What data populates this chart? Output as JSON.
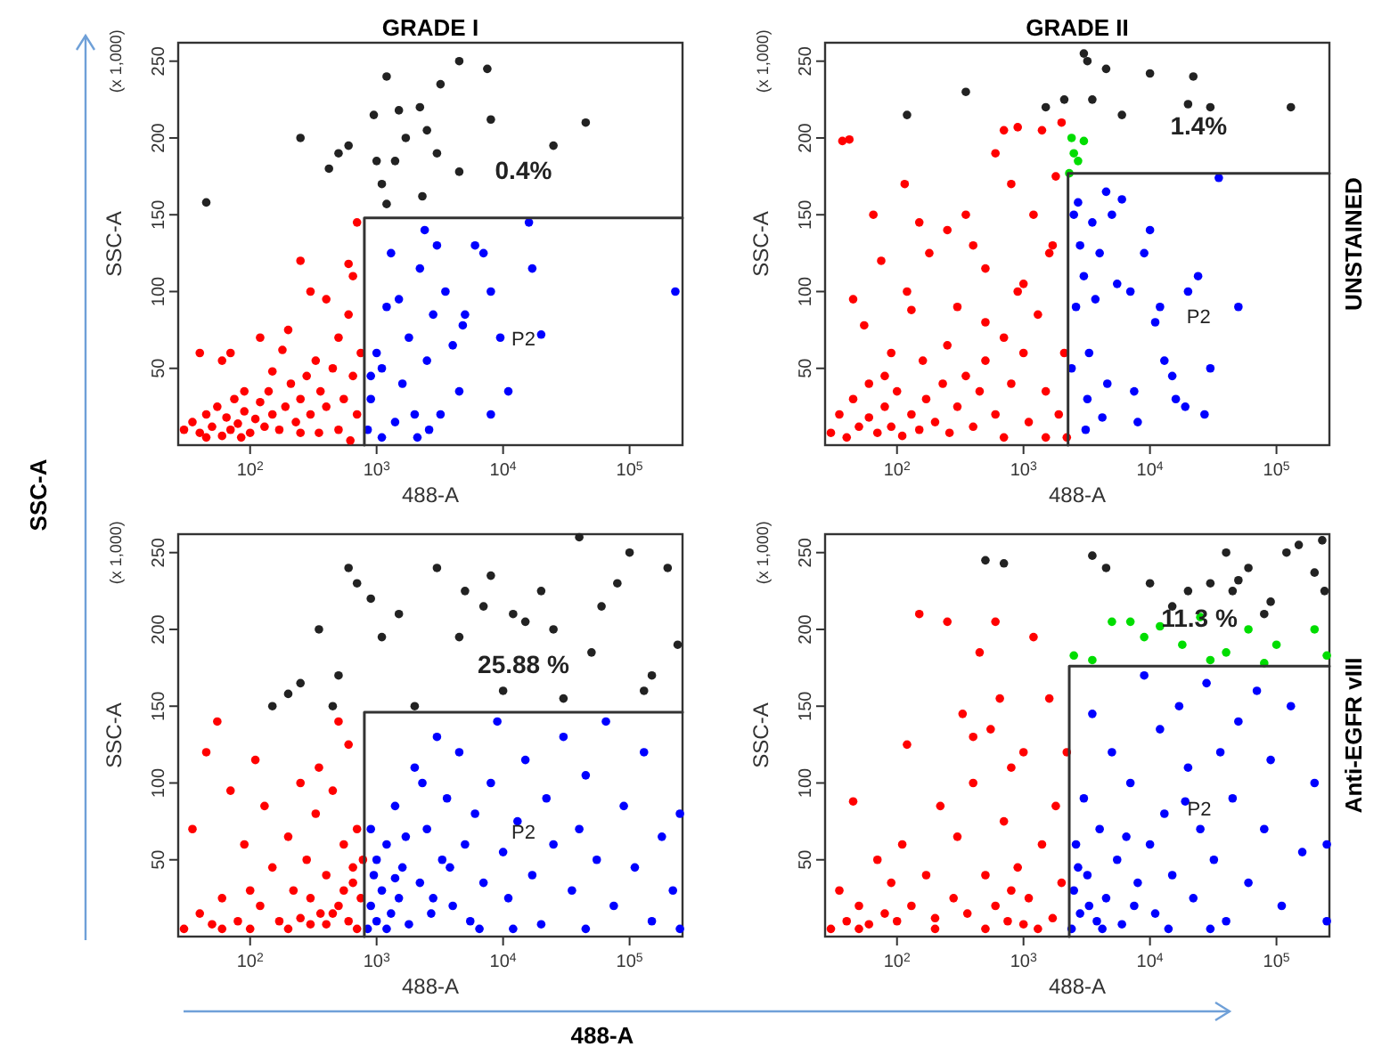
{
  "chart_data": [
    {
      "type": "scatter",
      "title": "GRADE I",
      "xlabel": "488-A",
      "ylabel": "SSC-A",
      "log": "x",
      "marker": "circle",
      "xlim": [
        27,
        262144
      ],
      "ylim": [
        0,
        262
      ],
      "xticks": [
        {
          "value": 100,
          "label": "10$^{2}$"
        },
        {
          "value": 1000,
          "label": "10$^{3}$"
        },
        {
          "value": 10000,
          "label": "10$^{4}$"
        },
        {
          "value": 100000,
          "label": "10$^{5}$"
        }
      ],
      "yticks": [
        50,
        100,
        150,
        200,
        250
      ],
      "annotations": [
        "(x 1,000)",
        "0.4%",
        "P2"
      ],
      "series": [
        {
          "type": "scatter",
          "color": "#ff0000",
          "x": [
            30,
            35,
            40,
            45,
            50,
            55,
            60,
            65,
            70,
            75,
            80,
            90,
            100,
            110,
            120,
            130,
            140,
            150,
            170,
            190,
            210,
            230,
            250,
            280,
            300,
            330,
            360,
            400,
            450,
            500,
            550,
            600,
            650,
            700,
            750,
            200,
            300,
            250,
            400,
            600,
            700,
            120,
            70,
            40,
            60,
            90,
            150,
            180,
            500,
            350,
            45,
            85,
            250,
            620,
            650
          ],
          "values": [
            10,
            15,
            8,
            20,
            12,
            25,
            6,
            18,
            10,
            30,
            14,
            22,
            8,
            17,
            28,
            12,
            35,
            20,
            10,
            25,
            40,
            15,
            30,
            45,
            20,
            55,
            35,
            25,
            50,
            70,
            30,
            85,
            45,
            20,
            60,
            75,
            100,
            120,
            95,
            118,
            145,
            70,
            60,
            60,
            55,
            35,
            48,
            62,
            10,
            8,
            5,
            5,
            8,
            3,
            110
          ]
        },
        {
          "type": "scatter",
          "color": "#0000ff",
          "x": [
            850,
            900,
            1000,
            1100,
            1200,
            1300,
            1500,
            1600,
            1800,
            2000,
            2200,
            2400,
            2500,
            2600,
            2800,
            3000,
            3500,
            4000,
            4500,
            5000,
            6000,
            7000,
            8000,
            8000,
            9500,
            11000,
            17000,
            20000,
            230000,
            16000,
            1100,
            1400,
            2100,
            900,
            3200,
            4800
          ],
          "values": [
            10,
            30,
            60,
            50,
            90,
            125,
            95,
            40,
            70,
            20,
            115,
            140,
            55,
            10,
            85,
            130,
            100,
            65,
            35,
            85,
            130,
            125,
            100,
            20,
            70,
            35,
            115,
            72,
            100,
            145,
            5,
            15,
            5,
            45,
            20,
            78
          ]
        },
        {
          "type": "scatter",
          "color": "#222222",
          "x": [
            45,
            250,
            420,
            500,
            600,
            950,
            1000,
            1100,
            1200,
            1400,
            1500,
            1700,
            2200,
            2500,
            3200,
            4500,
            4500,
            7500,
            8000,
            25000,
            45000,
            2300,
            1200,
            3000
          ],
          "values": [
            158,
            200,
            180,
            190,
            195,
            215,
            185,
            170,
            240,
            185,
            218,
            200,
            220,
            205,
            235,
            250,
            178,
            245,
            212,
            195,
            210,
            162,
            157,
            190
          ]
        },
        {
          "type": "line",
          "marker": "none",
          "color": "#333333",
          "x": [
            800,
            800,
            262144
          ],
          "values": [
            0,
            148,
            148
          ]
        }
      ]
    },
    {
      "type": "scatter",
      "title": "GRADE II",
      "xlabel": "488-A",
      "ylabel": "SSC-A",
      "y2label": "UNSTAINED",
      "log": "x",
      "marker": "circle",
      "xlim": [
        27,
        262144
      ],
      "ylim": [
        0,
        262
      ],
      "xticks": [
        {
          "value": 100,
          "label": "10$^{2}$"
        },
        {
          "value": 1000,
          "label": "10$^{3}$"
        },
        {
          "value": 10000,
          "label": "10$^{4}$"
        },
        {
          "value": 100000,
          "label": "10$^{5}$"
        }
      ],
      "yticks": [
        50,
        100,
        150,
        200,
        250
      ],
      "annotations": [
        "(x 1,000)",
        "1.4%",
        "P2"
      ],
      "series": [
        {
          "type": "scatter",
          "color": "#ff0000",
          "x": [
            30,
            35,
            40,
            45,
            50,
            60,
            70,
            80,
            90,
            100,
            110,
            130,
            150,
            170,
            200,
            230,
            260,
            300,
            350,
            400,
            450,
            500,
            600,
            700,
            800,
            900,
            1000,
            1100,
            1300,
            1500,
            1700,
            1900,
            2100,
            37,
            42,
            45,
            55,
            65,
            75,
            90,
            115,
            120,
            150,
            180,
            250,
            300,
            350,
            400,
            500,
            600,
            700,
            800,
            900,
            1000,
            1200,
            1400,
            1600,
            2000,
            1800,
            500,
            250,
            160,
            130,
            80,
            60,
            2200,
            1500,
            700
          ],
          "values": [
            8,
            20,
            5,
            30,
            12,
            18,
            8,
            25,
            12,
            35,
            6,
            20,
            10,
            30,
            15,
            40,
            8,
            25,
            45,
            12,
            35,
            55,
            20,
            70,
            40,
            100,
            60,
            15,
            85,
            35,
            130,
            20,
            60,
            198,
            199,
            95,
            78,
            150,
            120,
            60,
            170,
            100,
            145,
            125,
            140,
            90,
            150,
            130,
            115,
            190,
            205,
            170,
            207,
            105,
            150,
            205,
            125,
            210,
            175,
            80,
            65,
            55,
            88,
            45,
            40,
            5,
            5,
            5
          ]
        },
        {
          "type": "scatter",
          "color": "#00dd00",
          "x": [
            2400,
            2500,
            2700,
            3000,
            2300
          ],
          "values": [
            200,
            190,
            185,
            198,
            177
          ]
        },
        {
          "type": "scatter",
          "color": "#0000ff",
          "x": [
            2400,
            2500,
            2700,
            2800,
            3000,
            3200,
            3300,
            3500,
            3700,
            4000,
            4200,
            4500,
            5000,
            5500,
            6000,
            7000,
            7500,
            8000,
            9000,
            10000,
            11000,
            12000,
            13000,
            15000,
            16000,
            20000,
            24000,
            30000,
            27000,
            50000,
            2600,
            3100,
            4600,
            19000,
            35000
          ],
          "values": [
            50,
            150,
            158,
            130,
            110,
            30,
            60,
            145,
            95,
            125,
            18,
            165,
            150,
            105,
            160,
            100,
            35,
            15,
            125,
            140,
            80,
            90,
            55,
            45,
            30,
            100,
            110,
            50,
            20,
            90,
            90,
            10,
            40,
            25,
            174
          ]
        },
        {
          "type": "scatter",
          "color": "#222222",
          "x": [
            120,
            350,
            1500,
            2100,
            3000,
            3200,
            3500,
            4500,
            6000,
            10000,
            20000,
            22000,
            30000,
            130000
          ],
          "values": [
            215,
            230,
            220,
            225,
            255,
            250,
            225,
            245,
            215,
            242,
            222,
            240,
            220,
            220
          ]
        },
        {
          "type": "line",
          "marker": "none",
          "color": "#333333",
          "x": [
            2250,
            2250,
            262144
          ],
          "values": [
            0,
            177,
            177
          ]
        }
      ]
    },
    {
      "type": "scatter",
      "xlabel": "488-A",
      "ylabel": "SSC-A",
      "log": "x",
      "marker": "circle",
      "xlim": [
        27,
        262144
      ],
      "ylim": [
        0,
        262
      ],
      "xticks": [
        {
          "value": 100,
          "label": "10$^{2}$"
        },
        {
          "value": 1000,
          "label": "10$^{3}$"
        },
        {
          "value": 10000,
          "label": "10$^{4}$"
        },
        {
          "value": 100000,
          "label": "10$^{5}$"
        }
      ],
      "yticks": [
        50,
        100,
        150,
        200,
        250
      ],
      "annotations": [
        "(x 1,000)",
        "25.88 %",
        "P2"
      ],
      "series": [
        {
          "type": "scatter",
          "color": "#ff0000",
          "x": [
            30,
            35,
            40,
            45,
            50,
            55,
            60,
            70,
            80,
            90,
            100,
            110,
            120,
            130,
            150,
            170,
            200,
            220,
            250,
            280,
            300,
            330,
            360,
            400,
            450,
            500,
            550,
            600,
            650,
            700,
            750,
            780,
            500,
            600,
            350,
            250,
            400,
            700,
            200,
            100,
            60,
            650,
            550,
            450,
            300
          ],
          "values": [
            5,
            70,
            15,
            120,
            8,
            140,
            25,
            95,
            10,
            60,
            30,
            115,
            20,
            85,
            45,
            10,
            65,
            30,
            12,
            50,
            25,
            80,
            15,
            40,
            95,
            20,
            60,
            10,
            35,
            70,
            25,
            50,
            140,
            125,
            110,
            100,
            8,
            5,
            5,
            5,
            5,
            45,
            30,
            15,
            8
          ]
        },
        {
          "type": "scatter",
          "color": "#0000ff",
          "x": [
            850,
            900,
            950,
            1000,
            1100,
            1200,
            1300,
            1400,
            1500,
            1600,
            1800,
            2000,
            2200,
            2500,
            2700,
            3000,
            3300,
            3600,
            4000,
            4500,
            5000,
            5500,
            6000,
            7000,
            8000,
            9000,
            10000,
            11000,
            13000,
            15000,
            17000,
            20000,
            22000,
            25000,
            30000,
            35000,
            40000,
            45000,
            55000,
            65000,
            75000,
            90000,
            110000,
            130000,
            150000,
            180000,
            220000,
            250000,
            250000,
            1000,
            1200,
            1700,
            2300,
            2800,
            3800,
            6500,
            12000,
            45000,
            1400,
            900
          ],
          "values": [
            5,
            20,
            40,
            10,
            30,
            60,
            15,
            85,
            25,
            45,
            8,
            110,
            35,
            70,
            15,
            130,
            50,
            90,
            20,
            120,
            60,
            10,
            80,
            35,
            100,
            140,
            55,
            25,
            75,
            115,
            40,
            8,
            90,
            60,
            130,
            30,
            70,
            105,
            50,
            140,
            20,
            85,
            45,
            120,
            10,
            65,
            30,
            80,
            5,
            50,
            5,
            65,
            100,
            25,
            45,
            5,
            5,
            5,
            38,
            70
          ]
        },
        {
          "type": "scatter",
          "color": "#222222",
          "x": [
            150,
            200,
            250,
            350,
            450,
            500,
            600,
            700,
            900,
            1100,
            1500,
            2000,
            3000,
            4500,
            5000,
            7000,
            8000,
            10000,
            12000,
            15000,
            20000,
            25000,
            30000,
            40000,
            50000,
            60000,
            80000,
            100000,
            150000,
            200000,
            240000,
            130000
          ],
          "values": [
            150,
            158,
            165,
            200,
            150,
            170,
            240,
            230,
            220,
            195,
            210,
            150,
            240,
            195,
            225,
            215,
            235,
            160,
            210,
            205,
            225,
            200,
            155,
            260,
            185,
            215,
            230,
            250,
            170,
            240,
            190,
            160
          ]
        },
        {
          "type": "line",
          "marker": "none",
          "color": "#333333",
          "x": [
            800,
            800,
            262144
          ],
          "values": [
            0,
            146,
            146
          ]
        }
      ]
    },
    {
      "type": "scatter",
      "xlabel": "488-A",
      "ylabel": "SSC-A",
      "y2label": "Anti-EGFR vIII",
      "log": "x",
      "marker": "circle",
      "xlim": [
        27,
        262144
      ],
      "ylim": [
        0,
        262
      ],
      "xticks": [
        {
          "value": 100,
          "label": "10$^{2}$"
        },
        {
          "value": 1000,
          "label": "10$^{3}$"
        },
        {
          "value": 10000,
          "label": "10$^{4}$"
        },
        {
          "value": 100000,
          "label": "10$^{5}$"
        }
      ],
      "yticks": [
        50,
        100,
        150,
        200,
        250
      ],
      "annotations": [
        "(x 1,000)",
        "11.3 %",
        "P2"
      ],
      "series": [
        {
          "type": "scatter",
          "color": "#ff0000",
          "x": [
            30,
            35,
            40,
            45,
            50,
            60,
            70,
            80,
            90,
            100,
            110,
            120,
            130,
            150,
            170,
            200,
            220,
            250,
            280,
            300,
            330,
            360,
            400,
            450,
            500,
            550,
            600,
            650,
            700,
            750,
            800,
            900,
            1000,
            1100,
            1200,
            1400,
            1600,
            1800,
            2000,
            2200,
            600,
            400,
            1300,
            500,
            200,
            50,
            1000,
            1700,
            800
          ],
          "values": [
            5,
            30,
            10,
            88,
            20,
            8,
            50,
            15,
            35,
            10,
            60,
            125,
            20,
            210,
            40,
            12,
            85,
            205,
            25,
            65,
            145,
            15,
            100,
            185,
            40,
            135,
            20,
            155,
            75,
            10,
            110,
            45,
            120,
            25,
            195,
            60,
            155,
            85,
            35,
            120,
            205,
            130,
            5,
            5,
            5,
            5,
            8,
            12,
            30
          ]
        },
        {
          "type": "scatter",
          "color": "#00dd00",
          "x": [
            2500,
            3500,
            5000,
            7000,
            9000,
            12000,
            18000,
            25000,
            40000,
            60000,
            100000,
            200000,
            250000,
            80000,
            30000
          ],
          "values": [
            183,
            180,
            205,
            205,
            195,
            202,
            190,
            208,
            185,
            200,
            190,
            200,
            183,
            178,
            180
          ]
        },
        {
          "type": "scatter",
          "color": "#0000ff",
          "x": [
            2400,
            2500,
            2600,
            2800,
            3000,
            3200,
            3500,
            3800,
            4000,
            4500,
            5000,
            5500,
            6000,
            7000,
            8000,
            9000,
            10000,
            11000,
            12000,
            13000,
            15000,
            17000,
            20000,
            22000,
            25000,
            28000,
            32000,
            36000,
            40000,
            45000,
            50000,
            60000,
            70000,
            80000,
            90000,
            110000,
            130000,
            160000,
            200000,
            250000,
            250000,
            2700,
            3300,
            4200,
            6500,
            7500,
            14000,
            30000,
            19000
          ],
          "values": [
            5,
            30,
            60,
            15,
            90,
            40,
            145,
            10,
            70,
            25,
            120,
            50,
            8,
            100,
            35,
            170,
            60,
            15,
            135,
            80,
            40,
            150,
            110,
            25,
            70,
            165,
            50,
            120,
            10,
            90,
            140,
            35,
            160,
            70,
            115,
            20,
            150,
            55,
            100,
            10,
            60,
            45,
            20,
            5,
            65,
            20,
            5,
            5,
            88
          ]
        },
        {
          "type": "scatter",
          "color": "#222222",
          "x": [
            500,
            700,
            3500,
            4500,
            10000,
            15000,
            20000,
            30000,
            40000,
            45000,
            50000,
            60000,
            80000,
            90000,
            120000,
            150000,
            200000,
            230000,
            240000
          ],
          "values": [
            245,
            243,
            248,
            240,
            230,
            215,
            225,
            230,
            250,
            225,
            232,
            240,
            210,
            218,
            250,
            255,
            237,
            258,
            225
          ]
        },
        {
          "type": "line",
          "marker": "none",
          "color": "#333333",
          "x": [
            2300,
            2300,
            262144
          ],
          "values": [
            0,
            176,
            176
          ]
        }
      ]
    },
    {
      "type": "other",
      "annotations": [
        "SSC-A",
        "488-A"
      ]
    }
  ]
}
